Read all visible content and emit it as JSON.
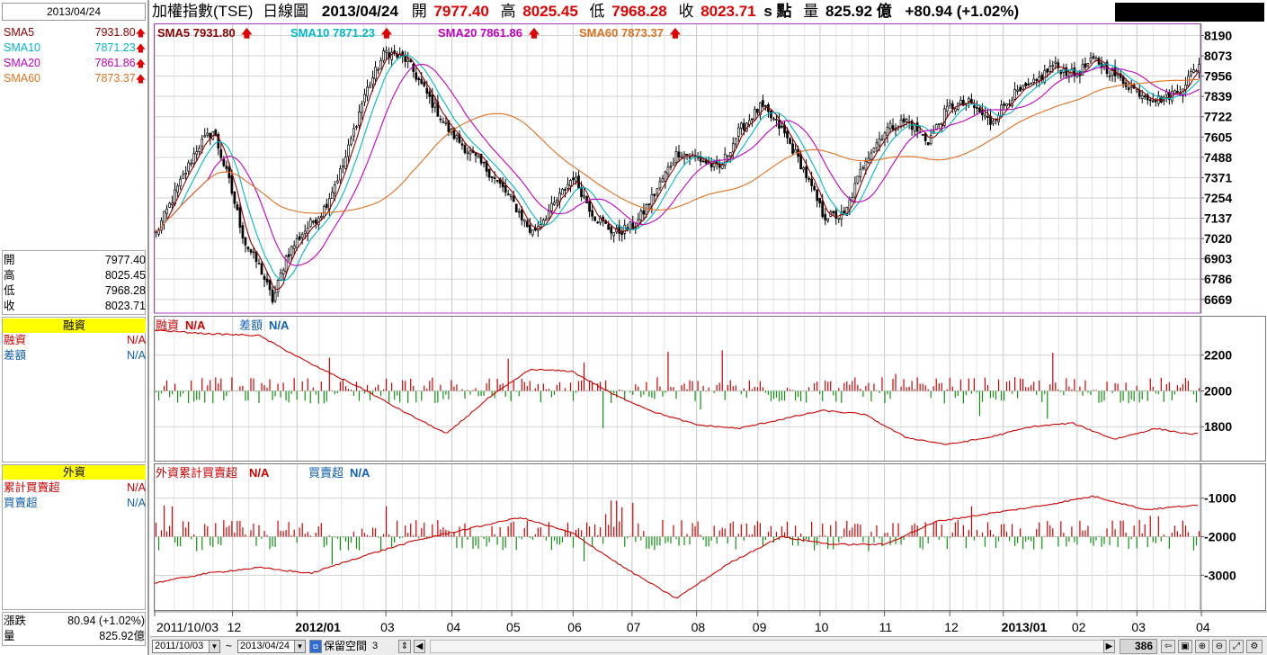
{
  "left_panel": {
    "date": "2013/04/24",
    "sma": [
      {
        "name": "SMA5",
        "value": "7931.80",
        "color": "#8b0000"
      },
      {
        "name": "SMA10",
        "value": "7871.23",
        "color": "#00b8c8"
      },
      {
        "name": "SMA20",
        "value": "7861.86",
        "color": "#c000c0"
      },
      {
        "name": "SMA60",
        "value": "7873.37",
        "color": "#e07020"
      }
    ],
    "ohlc": [
      {
        "name": "開",
        "value": "7977.40"
      },
      {
        "name": "高",
        "value": "8025.45"
      },
      {
        "name": "低",
        "value": "7968.28"
      },
      {
        "name": "收",
        "value": "8023.71"
      }
    ],
    "margin_title": "融資",
    "margin_rows": [
      {
        "name": "融資",
        "value": "N/A",
        "color": "#cc0000"
      },
      {
        "name": "差額",
        "value": "N/A",
        "color": "#1060b0"
      }
    ],
    "foreign_title": "外資",
    "foreign_rows": [
      {
        "name": "累計買賣超",
        "value": "N/A",
        "color": "#cc0000"
      },
      {
        "name": "買賣超",
        "value": "N/A",
        "color": "#1060b0"
      }
    ],
    "change_label": "漲跌",
    "change_value": "80.94 (+1.02%)",
    "volume_label": "量",
    "volume_value": "825.92億"
  },
  "header": {
    "title": "加權指數(TSE)",
    "chart_kind": "日線圖",
    "date": "2013/04/24",
    "open_label": "開",
    "open_value": "7977.40",
    "high_label": "高",
    "high_value": "8025.45",
    "low_label": "低",
    "low_value": "7968.28",
    "close_label": "收",
    "close_value": "8023.71",
    "unit": "s 點",
    "volume_label": "量",
    "volume_value": "825.92 億",
    "change": "+80.94 (+1.02%)"
  },
  "legend": {
    "main": [
      {
        "text": "SMA5 7931.80",
        "color": "#8b0000"
      },
      {
        "text": "SMA10 7871.23",
        "color": "#00b8c8"
      },
      {
        "text": "SMA20 7861.86",
        "color": "#c000c0"
      },
      {
        "text": "SMA60 7873.37",
        "color": "#e07020"
      }
    ],
    "arrow": "🡅",
    "margin": [
      {
        "text": "融資",
        "color": "#cc0000"
      },
      {
        "text": "N/A",
        "color": "#cc0000"
      },
      {
        "text": "差額",
        "color": "#1060b0"
      },
      {
        "text": "N/A",
        "color": "#1060b0"
      }
    ],
    "foreign": [
      {
        "text": "外資累計買賣超",
        "color": "#cc0000"
      },
      {
        "text": "N/A",
        "color": "#cc0000"
      },
      {
        "text": "買賣超",
        "color": "#1060b0"
      },
      {
        "text": "N/A",
        "color": "#1060b0"
      }
    ]
  },
  "chart_data": [
    {
      "type": "candlestick",
      "title": "加權指數(TSE) 日線圖",
      "x_range": [
        "2011/10/03",
        "2013/04/24"
      ],
      "y_ticks": [
        8190,
        8073,
        7956,
        7839,
        7722,
        7605,
        7488,
        7371,
        7254,
        7137,
        7020,
        6903,
        6786,
        6669
      ],
      "ylim": [
        6590,
        8260
      ],
      "close_path_x": [
        0,
        0.02,
        0.04,
        0.055,
        0.07,
        0.085,
        0.1,
        0.112,
        0.125,
        0.14,
        0.16,
        0.18,
        0.2,
        0.22,
        0.24,
        0.26,
        0.28,
        0.3,
        0.32,
        0.34,
        0.36,
        0.38,
        0.4,
        0.42,
        0.44,
        0.46,
        0.48,
        0.5,
        0.52,
        0.54,
        0.56,
        0.58,
        0.6,
        0.62,
        0.64,
        0.66,
        0.68,
        0.7,
        0.72,
        0.74,
        0.76,
        0.78,
        0.8,
        0.82,
        0.84,
        0.86,
        0.88,
        0.9,
        0.92,
        0.94,
        0.96,
        0.98,
        1.0
      ],
      "close_path_y": [
        7050,
        7300,
        7550,
        7640,
        7350,
        7000,
        6850,
        6660,
        6920,
        7050,
        7180,
        7450,
        7850,
        8100,
        8050,
        7850,
        7650,
        7520,
        7400,
        7250,
        7050,
        7200,
        7380,
        7150,
        7050,
        7100,
        7300,
        7520,
        7480,
        7420,
        7650,
        7780,
        7650,
        7430,
        7150,
        7150,
        7480,
        7650,
        7700,
        7580,
        7780,
        7800,
        7690,
        7840,
        7900,
        8020,
        7960,
        8050,
        7960,
        7870,
        7820,
        7870,
        8023.71
      ],
      "series": [
        {
          "name": "SMA5",
          "value": 7931.8
        },
        {
          "name": "SMA10",
          "value": 7871.23
        },
        {
          "name": "SMA20",
          "value": 7861.86
        },
        {
          "name": "SMA60",
          "value": 7873.37
        }
      ]
    },
    {
      "type": "line+bar",
      "title": "融資",
      "y_ticks": [
        2200,
        2000,
        1800
      ],
      "ylim": [
        1610,
        2420
      ],
      "series": [
        {
          "name": "融資",
          "value": "N/A",
          "path_x": [
            0,
            0.05,
            0.1,
            0.15,
            0.2,
            0.24,
            0.28,
            0.32,
            0.36,
            0.4,
            0.44,
            0.48,
            0.52,
            0.56,
            0.6,
            0.64,
            0.68,
            0.72,
            0.76,
            0.8,
            0.84,
            0.88,
            0.92,
            0.96,
            0.99
          ],
          "path_y": [
            2340,
            2320,
            2310,
            2150,
            2010,
            1880,
            1760,
            1960,
            2120,
            2110,
            1980,
            1880,
            1810,
            1790,
            1840,
            1890,
            1870,
            1740,
            1700,
            1740,
            1800,
            1820,
            1730,
            1790,
            1760
          ]
        },
        {
          "name": "差額",
          "value": "N/A"
        }
      ]
    },
    {
      "type": "line+bar",
      "title": "外資",
      "y_ticks": [
        -1000,
        -2000,
        -3000
      ],
      "ylim": [
        -3900,
        -100
      ],
      "series": [
        {
          "name": "累計買賣超",
          "value": "N/A",
          "path_x": [
            0,
            0.05,
            0.1,
            0.15,
            0.2,
            0.25,
            0.3,
            0.35,
            0.4,
            0.45,
            0.5,
            0.55,
            0.6,
            0.65,
            0.7,
            0.75,
            0.8,
            0.85,
            0.9,
            0.95,
            0.99
          ],
          "path_y": [
            -3200,
            -2950,
            -2800,
            -2950,
            -2500,
            -2100,
            -1800,
            -1500,
            -1900,
            -2800,
            -3600,
            -2700,
            -2000,
            -2200,
            -2200,
            -1600,
            -1400,
            -1200,
            -950,
            -1300,
            -1200
          ]
        },
        {
          "name": "買賣超",
          "value": "N/A"
        }
      ]
    }
  ],
  "x_axis": {
    "labels": [
      "2011/10/03",
      "12",
      "2012/01",
      "03",
      "04",
      "05",
      "06",
      "07",
      "08",
      "09",
      "10",
      "11",
      "12",
      "2013/01",
      "02",
      "03",
      "04"
    ],
    "bold": [
      false,
      false,
      true,
      false,
      false,
      false,
      false,
      false,
      false,
      false,
      false,
      false,
      false,
      true,
      false,
      false,
      false
    ],
    "positions": [
      0.0,
      0.099,
      0.181,
      0.294,
      0.378,
      0.454,
      0.532,
      0.607,
      0.689,
      0.767,
      0.846,
      0.928,
      1.011,
      1.079,
      1.173,
      1.249,
      1.331
    ]
  },
  "toolbar": {
    "start_date": "2011/10/03",
    "tilde": "~",
    "end_date": "2013/04/24",
    "reserve_label": "保留空間",
    "reserve_value": "3",
    "count": "386"
  }
}
